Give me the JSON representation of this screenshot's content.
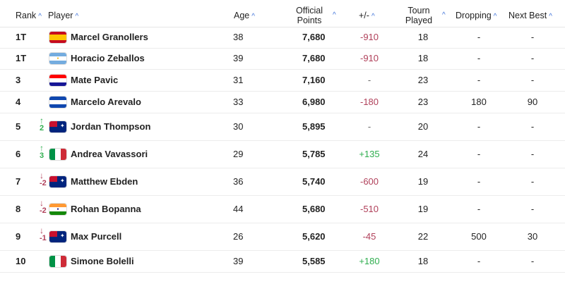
{
  "headers": {
    "rank": "Rank",
    "player": "Player",
    "age": "Age",
    "points_line1": "Official",
    "points_line2": "Points",
    "diff": "+/-",
    "tourn_line1": "Tourn",
    "tourn_line2": "Played",
    "dropping": "Dropping",
    "next_best": "Next Best"
  },
  "sort_icon": "chevron-up-icon",
  "colors": {
    "positive": "#2fae4f",
    "negative": "#b0405a",
    "accent": "#3a6fd8"
  },
  "rows": [
    {
      "rank": "1T",
      "name": "Marcel Granollers",
      "age": "38",
      "points": "7,680",
      "diff": "-910",
      "tourn": "18",
      "dropping": "-",
      "next_best": "-",
      "flag": "spain",
      "movement": null
    },
    {
      "rank": "1T",
      "name": "Horacio Zeballos",
      "age": "39",
      "points": "7,680",
      "diff": "-910",
      "tourn": "18",
      "dropping": "-",
      "next_best": "-",
      "flag": "argentina",
      "movement": null
    },
    {
      "rank": "3",
      "name": "Mate Pavic",
      "age": "31",
      "points": "7,160",
      "diff": "-",
      "tourn": "23",
      "dropping": "-",
      "next_best": "-",
      "flag": "croatia",
      "movement": null
    },
    {
      "rank": "4",
      "name": "Marcelo Arevalo",
      "age": "33",
      "points": "6,980",
      "diff": "-180",
      "tourn": "23",
      "dropping": "180",
      "next_best": "90",
      "flag": "el-salvador",
      "movement": null
    },
    {
      "rank": "5",
      "name": "Jordan Thompson",
      "age": "30",
      "points": "5,895",
      "diff": "-",
      "tourn": "20",
      "dropping": "-",
      "next_best": "-",
      "flag": "australia",
      "movement": "2",
      "dir": "up"
    },
    {
      "rank": "6",
      "name": "Andrea Vavassori",
      "age": "29",
      "points": "5,785",
      "diff": "+135",
      "tourn": "24",
      "dropping": "-",
      "next_best": "-",
      "flag": "italy",
      "movement": "3",
      "dir": "up"
    },
    {
      "rank": "7",
      "name": "Matthew Ebden",
      "age": "36",
      "points": "5,740",
      "diff": "-600",
      "tourn": "19",
      "dropping": "-",
      "next_best": "-",
      "flag": "australia",
      "movement": "-2",
      "dir": "down"
    },
    {
      "rank": "8",
      "name": "Rohan Bopanna",
      "age": "44",
      "points": "5,680",
      "diff": "-510",
      "tourn": "19",
      "dropping": "-",
      "next_best": "-",
      "flag": "india",
      "movement": "-2",
      "dir": "down"
    },
    {
      "rank": "9",
      "name": "Max Purcell",
      "age": "26",
      "points": "5,620",
      "diff": "-45",
      "tourn": "22",
      "dropping": "500",
      "next_best": "30",
      "flag": "australia",
      "movement": "-1",
      "dir": "down"
    },
    {
      "rank": "10",
      "name": "Simone Bolelli",
      "age": "39",
      "points": "5,585",
      "diff": "+180",
      "tourn": "18",
      "dropping": "-",
      "next_best": "-",
      "flag": "italy",
      "movement": null
    }
  ]
}
